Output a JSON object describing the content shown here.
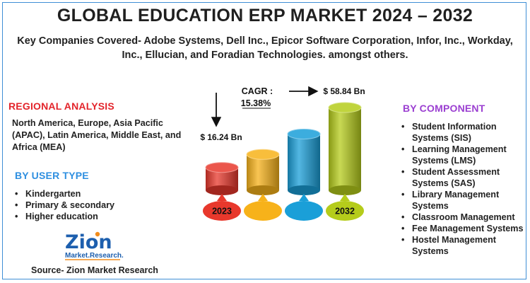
{
  "header": {
    "title": "GLOBAL EDUCATION ERP MARKET 2024 – 2032",
    "subtitle": "Key Companies Covered- Adobe Systems, Dell Inc., Epicor Software Corporation, Infor, Inc., Workday, Inc., Ellucian, and Foradian Technologies. amongst others."
  },
  "regional": {
    "heading": "REGIONAL ANALYSIS",
    "text": "North America, Europe, Asia Pacific (APAC), Latin America, Middle East, and Africa (MEA)"
  },
  "user_type": {
    "heading": "BY USER TYPE",
    "items": [
      "Kindergarten",
      "Primary & secondary",
      "Higher education"
    ]
  },
  "component": {
    "heading": "BY COMPONENT",
    "items": [
      "Student Information Systems (SIS)",
      "Learning Management Systems (LMS)",
      "Student Assessment Systems (SAS)",
      "Library Management Systems",
      "Classroom Management",
      "Fee Management Systems",
      "Hostel Management Systems"
    ]
  },
  "logo": {
    "name": "Zion",
    "tagline": "Market.Research."
  },
  "source": "Source- Zion Market Research",
  "colors": {
    "title": "#1f1f1f",
    "regional_heading": "#e3242b",
    "user_heading": "#2e8fe0",
    "component_heading": "#9b3fd1",
    "logo_blue": "#1d5fae",
    "logo_orange": "#f28c1c"
  },
  "chart_data": {
    "type": "bar",
    "categories": [
      "2023",
      "",
      "",
      "2032"
    ],
    "values": [
      16.24,
      25.5,
      40.0,
      58.84
    ],
    "colors": [
      "#e8382c",
      "#f7b21a",
      "#1a9fd8",
      "#b5cc1b"
    ],
    "value_labels": [
      "$ 16.24 Bn",
      "",
      "",
      "$ 58.84 Bn"
    ],
    "cagr_label": "CAGR :",
    "cagr_value": "15.38%"
  }
}
